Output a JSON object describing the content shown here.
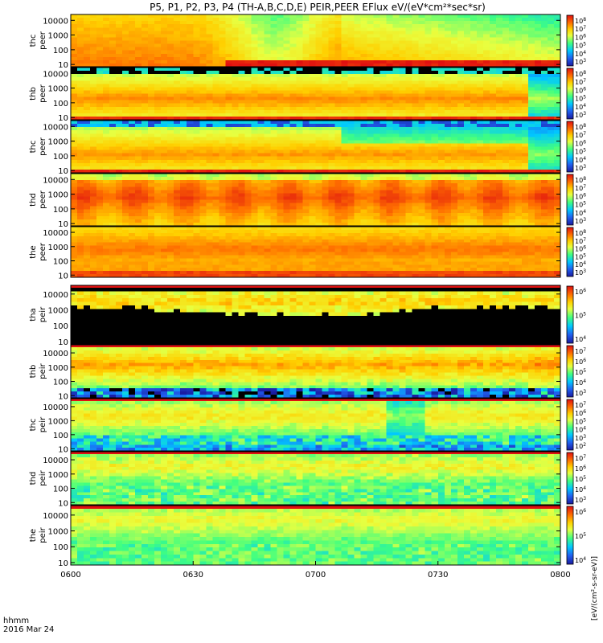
{
  "chart_data": {
    "type": "heatmap",
    "title": "P5, P1, P2, P3, P4 (TH-A,B,C,D,E) PEIR,PEER EFlux eV/(eV*cm²*sec*sr)",
    "x_tick_labels": [
      "0600",
      "0630",
      "0700",
      "0730",
      "0800"
    ],
    "x_ticks_hours": [
      6.0,
      6.5,
      7.0,
      7.5,
      8.0
    ],
    "x_range_hours": [
      6.0,
      8.0
    ],
    "x_corner_label": "hhmm",
    "date_label": "2016 Mar 24",
    "y_scale": "log",
    "y_range": [
      7,
      25000
    ],
    "y_tick_labels": [
      "10",
      "100",
      "1000",
      "10000"
    ],
    "y_tick_values": [
      10,
      100,
      1000,
      10000
    ],
    "colorbar_title": "[eV/(cm²-s-sr-eV)]",
    "colorscale": [
      "#1a1aa0",
      "#2060f0",
      "#00c8ff",
      "#40ff80",
      "#e8ff40",
      "#ffd000",
      "#ff7000",
      "#e01010"
    ],
    "panels": [
      {
        "label1": "thc",
        "label2": "peer",
        "exponents": [
          "8",
          "7",
          "6",
          "5",
          "4",
          "3"
        ],
        "theme": "c"
      },
      {
        "label1": "thb",
        "label2": "peer",
        "exponents": [
          "8",
          "7",
          "6",
          "5",
          "4",
          "3"
        ],
        "theme": "a"
      },
      {
        "label1": "thc",
        "label2": "peer",
        "exponents": [
          "8",
          "7",
          "6",
          "5",
          "4",
          "3"
        ],
        "theme": "b"
      },
      {
        "label1": "thd",
        "label2": "peer",
        "exponents": [
          "8",
          "7",
          "6",
          "5",
          "4",
          "3"
        ],
        "theme": "d"
      },
      {
        "label1": "the",
        "label2": "peer",
        "exponents": [
          "8",
          "7",
          "6",
          "5",
          "4",
          "3"
        ],
        "theme": "e"
      },
      {
        "label1": "tha",
        "label2": "peir",
        "exponents": [
          "6",
          "5",
          "4"
        ],
        "theme": "f"
      },
      {
        "label1": "thb",
        "label2": "peir",
        "exponents": [
          "7",
          "6",
          "5",
          "4",
          "3"
        ],
        "theme": "g"
      },
      {
        "label1": "thc",
        "label2": "peir",
        "exponents": [
          "7",
          "6",
          "5",
          "4",
          "3",
          "2"
        ],
        "theme": "h"
      },
      {
        "label1": "thd",
        "label2": "peir",
        "exponents": [
          "7",
          "6",
          "5",
          "4",
          "3"
        ],
        "theme": "i"
      },
      {
        "label1": "the",
        "label2": "peir",
        "exponents": [
          "6",
          "5",
          "4"
        ],
        "theme": "j"
      }
    ]
  }
}
